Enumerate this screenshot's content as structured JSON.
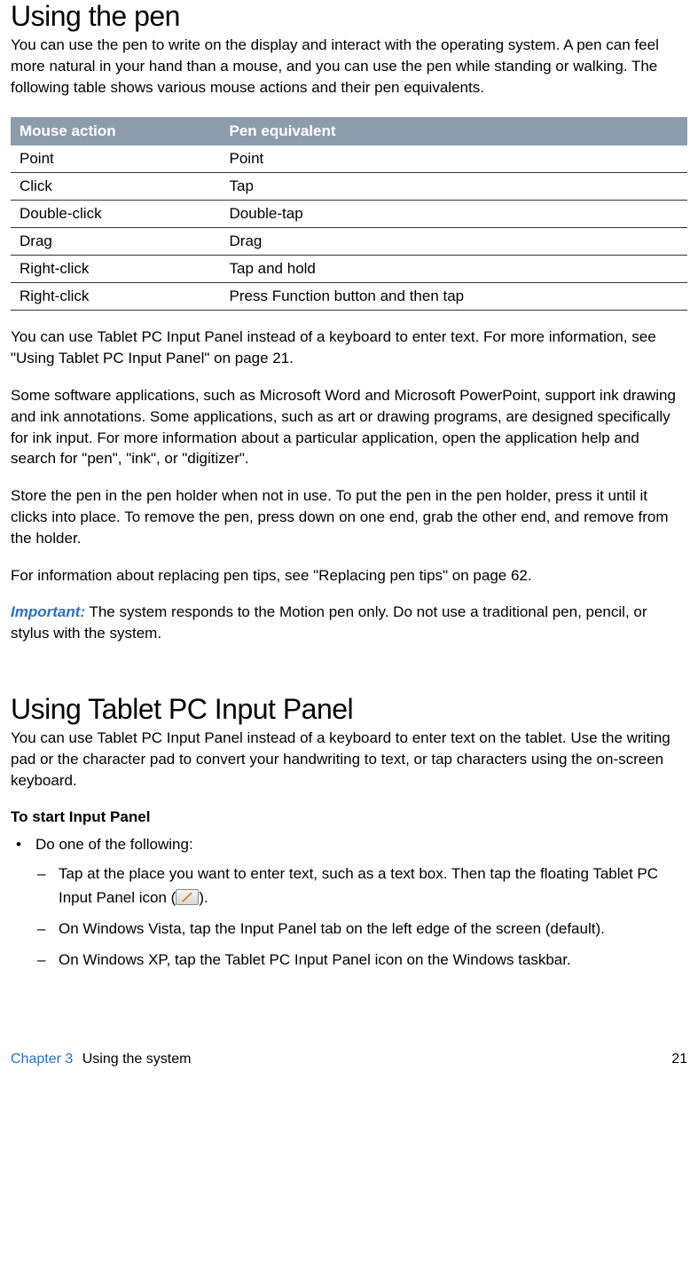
{
  "heading1": "Using the pen",
  "intro1": "You can use the pen to write on the display and interact with the operating system. A pen can feel more natural in your hand than a mouse, and you can use the pen while standing or walking. The following table shows various mouse actions and their pen equivalents.",
  "table": {
    "headers": [
      "Mouse action",
      "Pen equivalent"
    ],
    "rows": [
      [
        "Point",
        "Point"
      ],
      [
        "Click",
        "Tap"
      ],
      [
        "Double-click",
        "Double-tap"
      ],
      [
        "Drag",
        "Drag"
      ],
      [
        "Right-click",
        "Tap and hold"
      ],
      [
        "Right-click",
        "Press Function button and then tap"
      ]
    ]
  },
  "para_after_table_1": "You can use Tablet PC Input Panel instead of a keyboard to enter text. For more information, see \"Using Tablet PC Input Panel\" on page 21.",
  "para_after_table_2": "Some software applications, such as Microsoft Word and Microsoft PowerPoint, support ink drawing and ink annotations. Some applications, such as art or drawing programs, are designed specifically for ink input. For more information about a particular application, open the application help and search for \"pen\", \"ink\", or \"digitizer\".",
  "para_after_table_3": "Store the pen in the pen holder when not in use. To put the pen in the pen holder, press it until it clicks into place. To remove the pen, press down on one end, grab the other end, and remove from the holder.",
  "para_after_table_4": "For information about replacing pen tips, see \"Replacing pen tips\" on page 62.",
  "important_label": "Important:",
  "important_text": " The system responds to the Motion pen only. Do not use a traditional pen, pencil, or stylus with the system.",
  "heading2": "Using Tablet PC Input Panel",
  "intro2": "You can use Tablet PC Input Panel instead of a keyboard to enter text on the tablet. Use the writing pad or the character pad to convert your handwriting to text, or tap characters using the on-screen keyboard.",
  "subhead": "To start Input Panel",
  "bullet_main": "Do one of the following:",
  "dash1_a": "Tap at the place you want to enter text, such as a text box. Then tap the floating Tablet PC Input Panel icon (",
  "dash1_b": ").",
  "dash2": "On Windows Vista, tap the Input Panel tab on the left edge of the screen (default).",
  "dash3": "On Windows XP, tap the Tablet PC Input Panel icon on the Windows taskbar.",
  "footer": {
    "chapter": "Chapter 3",
    "title": "Using the system",
    "page": "21"
  },
  "colors": {
    "table_header_bg": "#8d9cad",
    "link_blue": "#2a6fc9"
  }
}
